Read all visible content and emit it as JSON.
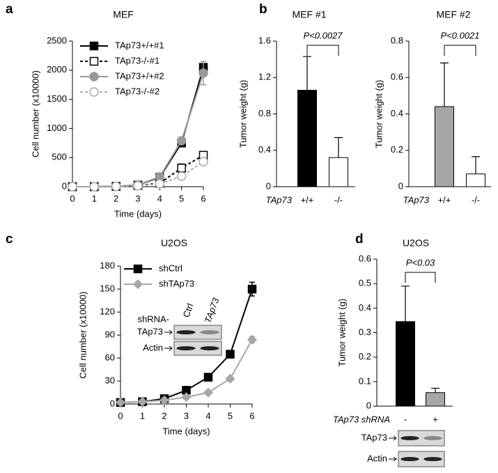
{
  "chart_data": [
    {
      "type": "line",
      "panel": "a",
      "title": "MEF",
      "xlabel": "Time (days)",
      "ylabel": "Cell number (x10000)",
      "x": [
        0,
        1,
        2,
        3,
        4,
        5,
        6
      ],
      "xlim": [
        0,
        6
      ],
      "xticks": [
        0,
        1,
        2,
        3,
        4,
        5,
        6
      ],
      "ylim": [
        0,
        2500
      ],
      "yticks": [
        0,
        500,
        1000,
        1500,
        2000,
        2500
      ],
      "series": [
        {
          "name": "TAp73+/+#1",
          "color": "#000000",
          "marker": "square",
          "fill": "#000000",
          "dashed": false,
          "values": [
            0,
            0,
            5,
            30,
            160,
            750,
            2050
          ],
          "errors": [
            null,
            null,
            null,
            null,
            null,
            30,
            60
          ]
        },
        {
          "name": "TAp73-/-#1",
          "color": "#000000",
          "marker": "square",
          "fill": "#ffffff",
          "dashed": true,
          "values": [
            0,
            0,
            5,
            20,
            60,
            320,
            540
          ],
          "errors": [
            null,
            null,
            null,
            null,
            null,
            70,
            null
          ]
        },
        {
          "name": "TAp73+/+#2",
          "color": "#999999",
          "marker": "circle",
          "fill": "#999999",
          "dashed": false,
          "values": [
            0,
            0,
            5,
            30,
            170,
            790,
            1950
          ],
          "errors": [
            null,
            null,
            null,
            null,
            null,
            null,
            200
          ]
        },
        {
          "name": "TAp73-/-#2",
          "color": "#aaaaaa",
          "marker": "circle",
          "fill": "#ffffff",
          "dashed": true,
          "values": [
            0,
            0,
            5,
            15,
            50,
            180,
            430
          ],
          "errors": [
            null,
            null,
            null,
            null,
            null,
            null,
            null
          ]
        }
      ]
    },
    {
      "type": "bar",
      "panel": "b",
      "title": "MEF #1",
      "ylabel": "Tumor weight (g)",
      "xlabel": "TAp73",
      "categories": [
        "+/+",
        "-/-"
      ],
      "values": [
        1.06,
        0.32
      ],
      "errors": [
        0.37,
        0.22
      ],
      "colors": [
        "#000000",
        "#ffffff"
      ],
      "ylim": [
        0,
        1.6
      ],
      "yticks": [
        0,
        0.4,
        0.8,
        1.2,
        1.6
      ],
      "annotation": "P<0.0027"
    },
    {
      "type": "bar",
      "title": "MEF #2",
      "ylabel": "Tumor weight (g)",
      "xlabel": "TAp73",
      "categories": [
        "+/+",
        "-/-"
      ],
      "values": [
        0.44,
        0.07
      ],
      "errors": [
        0.24,
        0.095
      ],
      "colors": [
        "#a6a6a6",
        "#ffffff"
      ],
      "ylim": [
        0,
        0.8
      ],
      "yticks": [
        0,
        0.2,
        0.4,
        0.6,
        0.8
      ],
      "annotation": "P<0.0021"
    },
    {
      "type": "line",
      "panel": "c",
      "title": "U2OS",
      "xlabel": "Time (days)",
      "ylabel": "Cell number (x10000)",
      "x": [
        0,
        1,
        2,
        3,
        4,
        5,
        6
      ],
      "xlim": [
        0,
        6
      ],
      "xticks": [
        0,
        1,
        2,
        3,
        4,
        5,
        6
      ],
      "ylim": [
        0,
        180
      ],
      "yticks": [
        0,
        30,
        60,
        90,
        120,
        150,
        180
      ],
      "series": [
        {
          "name": "shCtrl",
          "color": "#000000",
          "marker": "square",
          "fill": "#000000",
          "dashed": false,
          "values": [
            2,
            3,
            7,
            18,
            35,
            65,
            150
          ],
          "errors": [
            null,
            null,
            null,
            null,
            null,
            null,
            9
          ]
        },
        {
          "name": "shTAp73",
          "color": "#a6a6a6",
          "marker": "diamond",
          "fill": "#a6a6a6",
          "dashed": false,
          "values": [
            2,
            3,
            5,
            9,
            15,
            33,
            84
          ],
          "errors": [
            null,
            null,
            null,
            null,
            null,
            2,
            4
          ]
        }
      ],
      "blot": {
        "label": "shRNA-",
        "lanes": [
          "Ctrl",
          "TAp73"
        ],
        "rows": [
          "TAp73",
          "Actin"
        ]
      }
    },
    {
      "type": "bar",
      "panel": "d",
      "title": "U2OS",
      "ylabel": "Tumor weight (g)",
      "xlabel": "TAp73 shRNA",
      "categories": [
        "-",
        "+"
      ],
      "values": [
        0.345,
        0.055
      ],
      "errors": [
        0.145,
        0.018
      ],
      "colors": [
        "#000000",
        "#a6a6a6"
      ],
      "ylim": [
        0,
        0.6
      ],
      "yticks": [
        0,
        0.1,
        0.2,
        0.3,
        0.4,
        0.5,
        0.6
      ],
      "annotation": "P<0.03",
      "blot": {
        "rows": [
          "TAp73",
          "Actin"
        ]
      }
    }
  ]
}
